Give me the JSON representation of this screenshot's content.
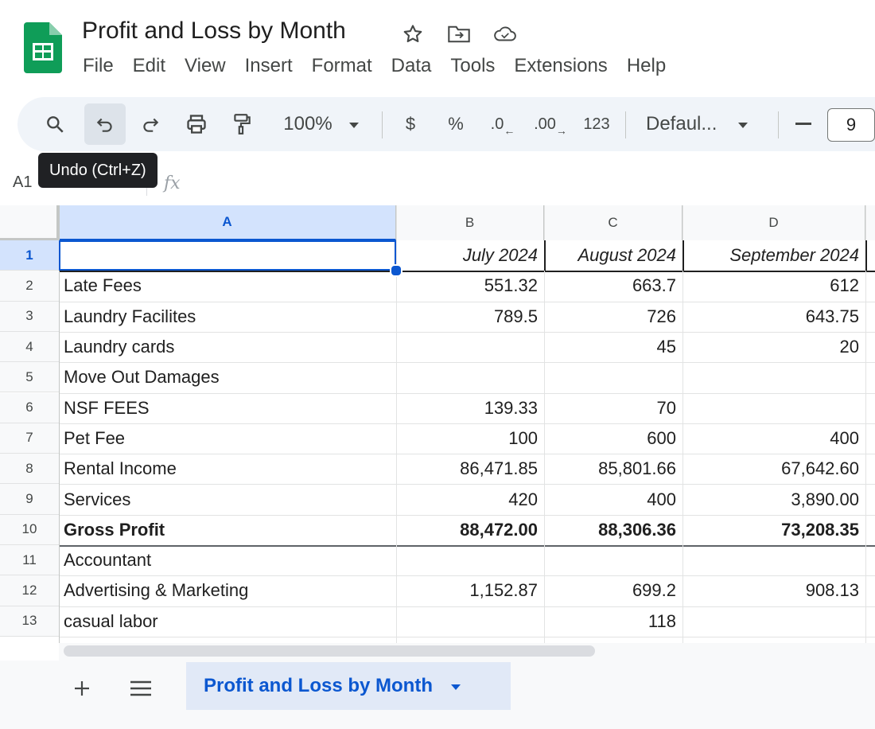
{
  "app": {
    "title": "Profit and Loss by Month",
    "brand_color": "#0f9d58",
    "accent_color": "#0b57d0",
    "title_icons": [
      "star-icon",
      "move-to-folder-icon",
      "cloud-saved-icon"
    ]
  },
  "menu": {
    "items": [
      "File",
      "Edit",
      "View",
      "Insert",
      "Format",
      "Data",
      "Tools",
      "Extensions",
      "Help"
    ]
  },
  "toolbar": {
    "zoom": "100%",
    "currency": "$",
    "percent": "%",
    "decrease_decimal": ".0",
    "increase_decimal": ".00",
    "number_format": "123",
    "font": "Defaul...",
    "font_size": "9",
    "icons": [
      "search-icon",
      "undo-icon",
      "redo-icon",
      "print-icon",
      "paint-format-icon",
      "dropdown-arrow-icon",
      "minus-icon"
    ]
  },
  "tooltip": {
    "text": "Undo (Ctrl+Z)"
  },
  "formula_bar": {
    "cell_ref": "A1",
    "fx": "fx"
  },
  "sheet": {
    "columns": [
      "A",
      "B",
      "C",
      "D"
    ],
    "selected_column": "A",
    "selected_cell": "A1",
    "rows": [
      {
        "num": "1",
        "label": "",
        "b": "July 2024",
        "c": "August 2024",
        "d": "September 2024",
        "header": true
      },
      {
        "num": "2",
        "label": "Late Fees",
        "b": "551.32",
        "c": "663.7",
        "d": "612"
      },
      {
        "num": "3",
        "label": "Laundry Facilites",
        "b": "789.5",
        "c": "726",
        "d": "643.75"
      },
      {
        "num": "4",
        "label": "Laundry cards",
        "b": "",
        "c": "45",
        "d": "20"
      },
      {
        "num": "5",
        "label": "Move Out Damages",
        "b": "",
        "c": "",
        "d": ""
      },
      {
        "num": "6",
        "label": "NSF FEES",
        "b": "139.33",
        "c": "70",
        "d": ""
      },
      {
        "num": "7",
        "label": "Pet Fee",
        "b": "100",
        "c": "600",
        "d": "400"
      },
      {
        "num": "8",
        "label": "Rental Income",
        "b": "86,471.85",
        "c": "85,801.66",
        "d": "67,642.60"
      },
      {
        "num": "9",
        "label": "Services",
        "b": "420",
        "c": "400",
        "d": "3,890.00"
      },
      {
        "num": "10",
        "label": "Gross Profit",
        "b": "88,472.00",
        "c": "88,306.36",
        "d": "73,208.35",
        "bold": true
      },
      {
        "num": "11",
        "label": "Accountant",
        "b": "",
        "c": "",
        "d": ""
      },
      {
        "num": "12",
        "label": "Advertising & Marketing",
        "b": "1,152.87",
        "c": "699.2",
        "d": "908.13"
      },
      {
        "num": "13",
        "label": "casual labor",
        "b": "",
        "c": "118",
        "d": ""
      }
    ]
  },
  "sheets_bar": {
    "add_icon": "plus-icon",
    "list_icon": "all-sheets-icon",
    "active_tab": "Profit and Loss by Month"
  }
}
